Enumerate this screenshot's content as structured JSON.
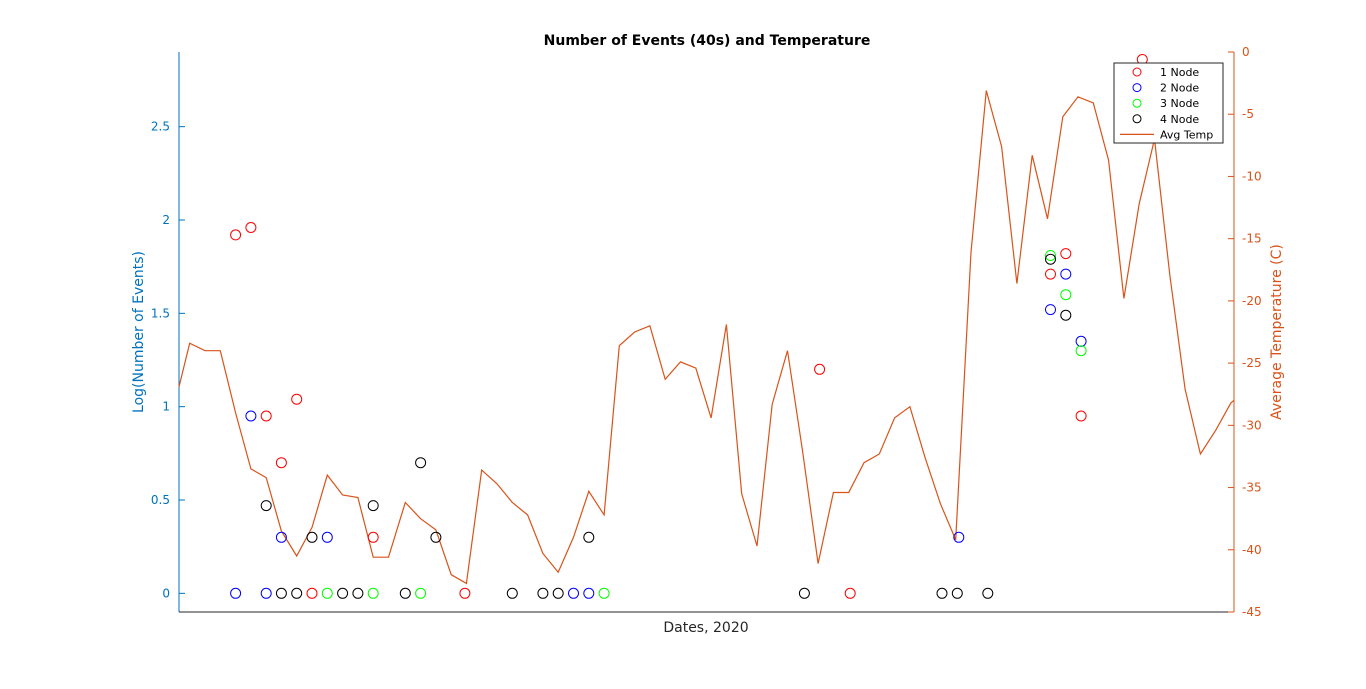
{
  "chart_data": {
    "type": "scatter",
    "title": "Number of Events (40s) and Temperature",
    "xlabel": "Dates, 2020",
    "ylabel_left": "Log(Number of Events)",
    "ylabel_right": "Average Temperature (C)",
    "ylim_left": [
      -0.1,
      2.9
    ],
    "ylim_right": [
      -45,
      0
    ],
    "xlim": [
      0,
      69
    ],
    "yticks_left": [
      "0",
      "0.5",
      "1",
      "1.5",
      "2",
      "2.5"
    ],
    "yticks_right": [
      "0",
      "-5",
      "-10",
      "-15",
      "-20",
      "-25",
      "-30",
      "-35",
      "-40",
      "-45"
    ],
    "left_axis_color": "#0072BD",
    "right_axis_color": "#D95319",
    "grid": false,
    "legend_position": "top-right",
    "legend": [
      "1 Node",
      "2 Node",
      "3 Node",
      "4 Node",
      "Avg Temp"
    ],
    "series": [
      {
        "name": "1 Node",
        "color": "#ff0000",
        "marker": "circle",
        "points": [
          [
            3.7,
            1.92
          ],
          [
            4.7,
            1.96
          ],
          [
            5.7,
            0.95
          ],
          [
            6.7,
            0.7
          ],
          [
            7.7,
            1.04
          ],
          [
            8.7,
            0.0
          ],
          [
            12.7,
            0.3
          ],
          [
            18.7,
            0.0
          ],
          [
            41.9,
            1.2
          ],
          [
            43.9,
            0.0
          ],
          [
            57.0,
            1.71
          ],
          [
            58.0,
            1.82
          ],
          [
            59.0,
            0.95
          ],
          [
            63.0,
            2.86
          ]
        ]
      },
      {
        "name": "2 Node",
        "color": "#0000ff",
        "marker": "circle",
        "points": [
          [
            3.7,
            0.0
          ],
          [
            4.7,
            0.95
          ],
          [
            5.7,
            0.0
          ],
          [
            6.7,
            0.3
          ],
          [
            9.7,
            0.3
          ],
          [
            25.8,
            0.0
          ],
          [
            26.8,
            0.0
          ],
          [
            51.0,
            0.3
          ],
          [
            57.0,
            1.52
          ],
          [
            58.0,
            1.71
          ],
          [
            59.0,
            1.35
          ]
        ]
      },
      {
        "name": "3 Node",
        "color": "#00ff00",
        "marker": "circle",
        "points": [
          [
            9.7,
            0.0
          ],
          [
            12.7,
            0.0
          ],
          [
            15.8,
            0.0
          ],
          [
            27.8,
            0.0
          ],
          [
            57.0,
            1.81
          ],
          [
            58.0,
            1.6
          ],
          [
            59.0,
            1.3
          ]
        ]
      },
      {
        "name": "4 Node",
        "color": "#000000",
        "marker": "circle",
        "points": [
          [
            5.7,
            0.47
          ],
          [
            6.7,
            0.0
          ],
          [
            7.7,
            0.0
          ],
          [
            8.7,
            0.3
          ],
          [
            10.7,
            0.0
          ],
          [
            11.7,
            0.0
          ],
          [
            12.7,
            0.47
          ],
          [
            14.8,
            0.0
          ],
          [
            15.8,
            0.7
          ],
          [
            16.8,
            0.3
          ],
          [
            21.8,
            0.0
          ],
          [
            23.8,
            0.0
          ],
          [
            24.8,
            0.0
          ],
          [
            26.8,
            0.3
          ],
          [
            40.9,
            0.0
          ],
          [
            49.9,
            0.0
          ],
          [
            50.9,
            0.0
          ],
          [
            52.9,
            0.0
          ],
          [
            57.0,
            1.79
          ],
          [
            58.0,
            1.49
          ]
        ]
      },
      {
        "name": "Avg Temp",
        "color": "#D95319",
        "type": "line",
        "x": [
          0,
          0.7,
          1.7,
          2.7,
          3.7,
          4.7,
          5.7,
          6.7,
          7.7,
          8.7,
          9.7,
          10.7,
          11.7,
          12.7,
          13.7,
          14.8,
          15.8,
          16.8,
          17.8,
          18.8,
          19.8,
          20.8,
          21.8,
          22.8,
          23.8,
          24.8,
          25.8,
          26.8,
          27.8,
          28.8,
          29.8,
          30.8,
          31.8,
          32.8,
          33.8,
          34.8,
          35.8,
          36.8,
          37.8,
          38.8,
          39.8,
          40.8,
          41.8,
          42.8,
          43.8,
          44.8,
          45.8,
          46.8,
          47.8,
          48.8,
          49.8,
          50.8,
          51.8,
          52.8,
          53.8,
          54.8,
          55.8,
          56.8,
          57.8,
          58.8,
          59.8,
          60.8,
          61.8,
          62.8,
          63.8,
          64.8,
          65.8,
          66.8,
          67.8,
          68.8,
          69.0
        ],
        "values": [
          -26.9,
          -23.4,
          -24.0,
          -24.0,
          -29.0,
          -33.5,
          -34.2,
          -38.5,
          -40.5,
          -38.2,
          -34.0,
          -35.6,
          -35.8,
          -40.6,
          -40.6,
          -36.2,
          -37.5,
          -38.4,
          -42.0,
          -42.7,
          -33.6,
          -34.7,
          -36.2,
          -37.2,
          -40.3,
          -41.8,
          -39.0,
          -35.3,
          -37.2,
          -23.6,
          -22.5,
          -22.0,
          -26.3,
          -24.9,
          -25.4,
          -29.4,
          -21.9,
          -35.5,
          -39.7,
          -28.3,
          -24.0,
          -32.2,
          -41.1,
          -35.4,
          -35.4,
          -33.0,
          -32.3,
          -29.4,
          -28.5,
          -32.6,
          -36.3,
          -39.2,
          -16.1,
          -3.1,
          -7.6,
          -18.6,
          -8.3,
          -13.4,
          -5.2,
          -3.6,
          -4.1,
          -8.7,
          -19.8,
          -12.2,
          -7.0,
          -17.9,
          -27.1,
          -32.3,
          -30.4,
          -28.2,
          -28.0
        ]
      }
    ]
  }
}
